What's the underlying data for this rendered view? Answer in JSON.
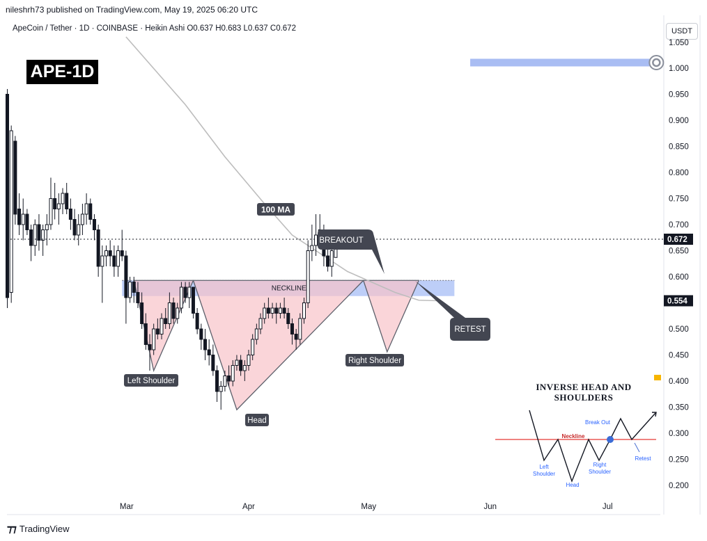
{
  "header": {
    "published": "nileshrh73 published on TradingView.com, May 19, 2025 06:20 UTC",
    "symbol_line": "ApeCoin / Tether · 1D · COINBASE · Heikin Ashi  O0.637  H0.683  L0.637  C0.672",
    "currency_button": "USDT",
    "badge": "APE-1D"
  },
  "footer": {
    "brand": "TradingView"
  },
  "chart_data": {
    "type": "candlestick",
    "symbol": "ApeCoin / Tether",
    "interval": "1D",
    "exchange": "COINBASE",
    "style": "Heikin Ashi",
    "ohlc_last": {
      "open": 0.637,
      "high": 0.683,
      "low": 0.637,
      "close": 0.672
    },
    "price_axis_ticks": [
      "1.000",
      "0.950",
      "0.900",
      "0.850",
      "0.800",
      "0.750",
      "0.700",
      "0.650",
      "0.600",
      "0.500",
      "0.450",
      "0.400",
      "0.350",
      "0.300",
      "0.250",
      "0.200"
    ],
    "price_axis_partial_top": "1.050",
    "ylim": [
      0.17,
      1.06
    ],
    "x_ticks": [
      {
        "label": "Mar",
        "day": 30
      },
      {
        "label": "Apr",
        "day": 61
      },
      {
        "label": "May",
        "day": 91
      },
      {
        "label": "Jun",
        "day": 122
      },
      {
        "label": "Jul",
        "day": 152
      }
    ],
    "price_labels": [
      {
        "value": 0.672,
        "text": "0.672",
        "note": "last price"
      },
      {
        "value": 0.554,
        "text": "0.554",
        "note": "100 MA value"
      }
    ],
    "candles_ohlc": [
      [
        0.95,
        0.96,
        0.54,
        0.56
      ],
      [
        0.57,
        0.89,
        0.55,
        0.88
      ],
      [
        0.86,
        0.87,
        0.7,
        0.72
      ],
      [
        0.73,
        0.76,
        0.68,
        0.7
      ],
      [
        0.7,
        0.75,
        0.67,
        0.72
      ],
      [
        0.72,
        0.73,
        0.68,
        0.69
      ],
      [
        0.69,
        0.7,
        0.63,
        0.66
      ],
      [
        0.66,
        0.71,
        0.64,
        0.7
      ],
      [
        0.7,
        0.72,
        0.65,
        0.67
      ],
      [
        0.67,
        0.7,
        0.64,
        0.69
      ],
      [
        0.69,
        0.72,
        0.66,
        0.7
      ],
      [
        0.7,
        0.79,
        0.69,
        0.75
      ],
      [
        0.75,
        0.78,
        0.71,
        0.73
      ],
      [
        0.73,
        0.76,
        0.7,
        0.74
      ],
      [
        0.74,
        0.77,
        0.72,
        0.76
      ],
      [
        0.76,
        0.78,
        0.72,
        0.73
      ],
      [
        0.73,
        0.75,
        0.69,
        0.71
      ],
      [
        0.71,
        0.73,
        0.67,
        0.68
      ],
      [
        0.68,
        0.72,
        0.66,
        0.7
      ],
      [
        0.7,
        0.74,
        0.68,
        0.72
      ],
      [
        0.72,
        0.76,
        0.7,
        0.74
      ],
      [
        0.74,
        0.75,
        0.7,
        0.71
      ],
      [
        0.71,
        0.72,
        0.67,
        0.69
      ],
      [
        0.69,
        0.7,
        0.6,
        0.62
      ],
      [
        0.62,
        0.66,
        0.55,
        0.64
      ],
      [
        0.64,
        0.66,
        0.62,
        0.65
      ],
      [
        0.65,
        0.67,
        0.62,
        0.64
      ],
      [
        0.64,
        0.66,
        0.6,
        0.62
      ],
      [
        0.62,
        0.66,
        0.6,
        0.65
      ],
      [
        0.65,
        0.69,
        0.63,
        0.64
      ],
      [
        0.64,
        0.65,
        0.51,
        0.56
      ],
      [
        0.56,
        0.6,
        0.55,
        0.59
      ],
      [
        0.59,
        0.6,
        0.55,
        0.57
      ],
      [
        0.57,
        0.59,
        0.54,
        0.55
      ],
      [
        0.55,
        0.57,
        0.5,
        0.51
      ],
      [
        0.51,
        0.53,
        0.46,
        0.47
      ],
      [
        0.47,
        0.49,
        0.42,
        0.46
      ],
      [
        0.46,
        0.51,
        0.45,
        0.5
      ],
      [
        0.5,
        0.52,
        0.48,
        0.49
      ],
      [
        0.49,
        0.53,
        0.48,
        0.52
      ],
      [
        0.52,
        0.54,
        0.5,
        0.51
      ],
      [
        0.51,
        0.57,
        0.5,
        0.55
      ],
      [
        0.55,
        0.56,
        0.51,
        0.52
      ],
      [
        0.52,
        0.55,
        0.51,
        0.54
      ],
      [
        0.54,
        0.59,
        0.53,
        0.58
      ],
      [
        0.58,
        0.59,
        0.55,
        0.56
      ],
      [
        0.56,
        0.59,
        0.54,
        0.58
      ],
      [
        0.58,
        0.58,
        0.52,
        0.53
      ],
      [
        0.53,
        0.54,
        0.49,
        0.5
      ],
      [
        0.5,
        0.51,
        0.46,
        0.48
      ],
      [
        0.48,
        0.5,
        0.44,
        0.46
      ],
      [
        0.46,
        0.48,
        0.43,
        0.45
      ],
      [
        0.45,
        0.47,
        0.41,
        0.42
      ],
      [
        0.42,
        0.43,
        0.36,
        0.38
      ],
      [
        0.38,
        0.4,
        0.345,
        0.39
      ],
      [
        0.39,
        0.42,
        0.38,
        0.41
      ],
      [
        0.41,
        0.43,
        0.39,
        0.4
      ],
      [
        0.4,
        0.44,
        0.39,
        0.43
      ],
      [
        0.43,
        0.45,
        0.42,
        0.44
      ],
      [
        0.44,
        0.45,
        0.41,
        0.42
      ],
      [
        0.42,
        0.44,
        0.4,
        0.43
      ],
      [
        0.43,
        0.46,
        0.42,
        0.45
      ],
      [
        0.45,
        0.49,
        0.44,
        0.48
      ],
      [
        0.48,
        0.51,
        0.47,
        0.5
      ],
      [
        0.5,
        0.53,
        0.49,
        0.52
      ],
      [
        0.52,
        0.55,
        0.51,
        0.54
      ],
      [
        0.54,
        0.56,
        0.52,
        0.53
      ],
      [
        0.53,
        0.55,
        0.52,
        0.54
      ],
      [
        0.54,
        0.55,
        0.51,
        0.53
      ],
      [
        0.53,
        0.55,
        0.52,
        0.54
      ],
      [
        0.54,
        0.56,
        0.52,
        0.53
      ],
      [
        0.53,
        0.54,
        0.5,
        0.51
      ],
      [
        0.51,
        0.52,
        0.47,
        0.49
      ],
      [
        0.49,
        0.5,
        0.46,
        0.48
      ],
      [
        0.48,
        0.53,
        0.47,
        0.52
      ],
      [
        0.52,
        0.56,
        0.51,
        0.55
      ],
      [
        0.55,
        0.67,
        0.54,
        0.65
      ],
      [
        0.65,
        0.7,
        0.63,
        0.66
      ],
      [
        0.66,
        0.72,
        0.64,
        0.68
      ],
      [
        0.68,
        0.72,
        0.66,
        0.69
      ],
      [
        0.69,
        0.7,
        0.62,
        0.64
      ],
      [
        0.64,
        0.66,
        0.61,
        0.62
      ],
      [
        0.62,
        0.67,
        0.6,
        0.65
      ],
      [
        0.637,
        0.683,
        0.637,
        0.672
      ]
    ],
    "ma100": {
      "label": "100 MA",
      "points": [
        [
          30,
          1.06
        ],
        [
          45,
          0.93
        ],
        [
          55,
          0.83
        ],
        [
          65,
          0.74
        ],
        [
          72,
          0.68
        ],
        [
          80,
          0.64
        ],
        [
          86,
          0.61
        ],
        [
          92,
          0.59
        ],
        [
          98,
          0.57
        ],
        [
          104,
          0.555
        ],
        [
          109,
          0.554
        ]
      ]
    },
    "neckline": {
      "label": "NECKLINE",
      "upper": 0.593,
      "lower": 0.563,
      "start_day": 29,
      "end_day": 113
    },
    "pattern": {
      "left_shoulder": {
        "label": "Left Shoulder",
        "points": [
          [
            32,
            0.593
          ],
          [
            37,
            0.42
          ],
          [
            47,
            0.593
          ]
        ]
      },
      "head": {
        "label": "Head",
        "points": [
          [
            47,
            0.593
          ],
          [
            58,
            0.345
          ],
          [
            90,
            0.593
          ]
        ]
      },
      "right_shoulder": {
        "label": "Right Shoulder",
        "points": [
          [
            90,
            0.593
          ],
          [
            96,
            0.456
          ],
          [
            104,
            0.593
          ]
        ]
      }
    },
    "annotations": [
      {
        "text": "BREAKOUT",
        "at_day": 100,
        "at_price": 0.6
      },
      {
        "text": "RETEST",
        "at_day": 106,
        "at_price": 0.585
      }
    ],
    "target": {
      "value": 1.01,
      "start_day": 117,
      "end_day": 163
    },
    "inset": {
      "title_line1": "INVERSE HEAD AND",
      "title_line2": "SHOULDERS",
      "labels": [
        "Neckline",
        "Break Out",
        "Left Shoulder",
        "Head",
        "Right Shoulder",
        "Retest"
      ]
    }
  },
  "colors": {
    "bull": "#131722",
    "bear": "#131722",
    "neck_band": "#b2c6f7",
    "triangle_fill": "#f8c3c9",
    "ma": "#bdbdbd",
    "target": "#a9bdf3",
    "label_box": "#434651",
    "inset_neckline": "#e53935",
    "inset_blue": "#2962ff"
  }
}
